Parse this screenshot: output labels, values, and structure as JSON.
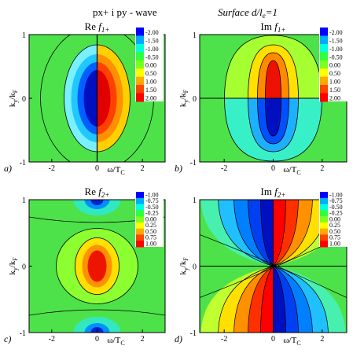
{
  "figure": {
    "header_left": "px+ i py - wave",
    "header_right": "Surface d/l",
    "header_right_sub": "e",
    "header_right_suffix": "=1"
  },
  "chart_data": [
    {
      "type": "heatmap",
      "panel": "a)",
      "title": "Re",
      "title_func": "f",
      "title_sub": "1+",
      "xlabel": "ω/T",
      "xlabel_sub": "C",
      "ylabel": "k",
      "ylabel_sub": "y",
      "ylabel_den": "/k",
      "ylabel_den_sub": "F",
      "xlim": [
        -3,
        3
      ],
      "ylim": [
        -1,
        1
      ],
      "xticks": [
        "-2",
        "0",
        "2"
      ],
      "yticks": [
        "-1",
        "0",
        "1"
      ],
      "colorbar": [
        "-2.00",
        "-1.50",
        "-1.00",
        "-0.50",
        "0.00",
        "0.50",
        "1.00",
        "1.50",
        "2.00"
      ],
      "colors": [
        "#0000ff",
        "#00aaff",
        "#00ffdd",
        "#30ff40",
        "#7cff20",
        "#ffff00",
        "#ffaa00",
        "#ff4400",
        "#ff0000"
      ]
    },
    {
      "type": "heatmap",
      "panel": "b)",
      "title": "Im",
      "title_func": "f",
      "title_sub": "1+",
      "xlabel": "ω/T",
      "xlabel_sub": "C",
      "ylabel": "k",
      "ylabel_sub": "y",
      "ylabel_den": "/k",
      "ylabel_den_sub": "F",
      "xlim": [
        -3,
        3
      ],
      "ylim": [
        -1,
        1
      ],
      "xticks": [
        "-2",
        "0",
        "2"
      ],
      "yticks": [
        "-1",
        "0",
        "1"
      ],
      "colorbar": [
        "-2.00",
        "-1.50",
        "-1.00",
        "-0.50",
        "0.00",
        "0.50",
        "1.00",
        "1.50",
        "2.00"
      ],
      "colors": [
        "#0000ff",
        "#00aaff",
        "#00ffdd",
        "#30ff40",
        "#7cff20",
        "#ffff00",
        "#ffaa00",
        "#ff4400",
        "#ff0000"
      ]
    },
    {
      "type": "heatmap",
      "panel": "c)",
      "title": "Re",
      "title_func": "f",
      "title_sub": "2+",
      "xlabel": "ω/T",
      "xlabel_sub": "C",
      "ylabel": "k",
      "ylabel_sub": "y",
      "ylabel_den": "/k",
      "ylabel_den_sub": "F",
      "xlim": [
        -3,
        3
      ],
      "ylim": [
        -1,
        1
      ],
      "xticks": [
        "-2",
        "0",
        "2"
      ],
      "yticks": [
        "-1",
        "0",
        "1"
      ],
      "colorbar": [
        "-1.00",
        "-0.75",
        "-0.50",
        "-0.25",
        "0.00",
        "0.25",
        "0.50",
        "0.75",
        "1.00"
      ],
      "colors": [
        "#0000ff",
        "#00aaff",
        "#00ffdd",
        "#30ff40",
        "#7cff20",
        "#ffff00",
        "#ffaa00",
        "#ff4400",
        "#ff0000"
      ]
    },
    {
      "type": "heatmap",
      "panel": "d)",
      "title": "Im",
      "title_func": "f",
      "title_sub": "2+",
      "xlabel": "ω/T",
      "xlabel_sub": "C",
      "ylabel": "k",
      "ylabel_sub": "y",
      "ylabel_den": "/k",
      "ylabel_den_sub": "F",
      "xlim": [
        -3,
        3
      ],
      "ylim": [
        -1,
        1
      ],
      "xticks": [
        "-2",
        "0",
        "2"
      ],
      "yticks": [
        "-1",
        "0",
        "1"
      ],
      "colorbar": [
        "-1.00",
        "-0.75",
        "-0.50",
        "-0.25",
        "0.00",
        "0.25",
        "0.50",
        "0.75",
        "1.00"
      ],
      "colors": [
        "#0000ff",
        "#00aaff",
        "#00ffdd",
        "#30ff40",
        "#7cff20",
        "#ffff00",
        "#ffaa00",
        "#ff4400",
        "#ff0000"
      ]
    }
  ]
}
